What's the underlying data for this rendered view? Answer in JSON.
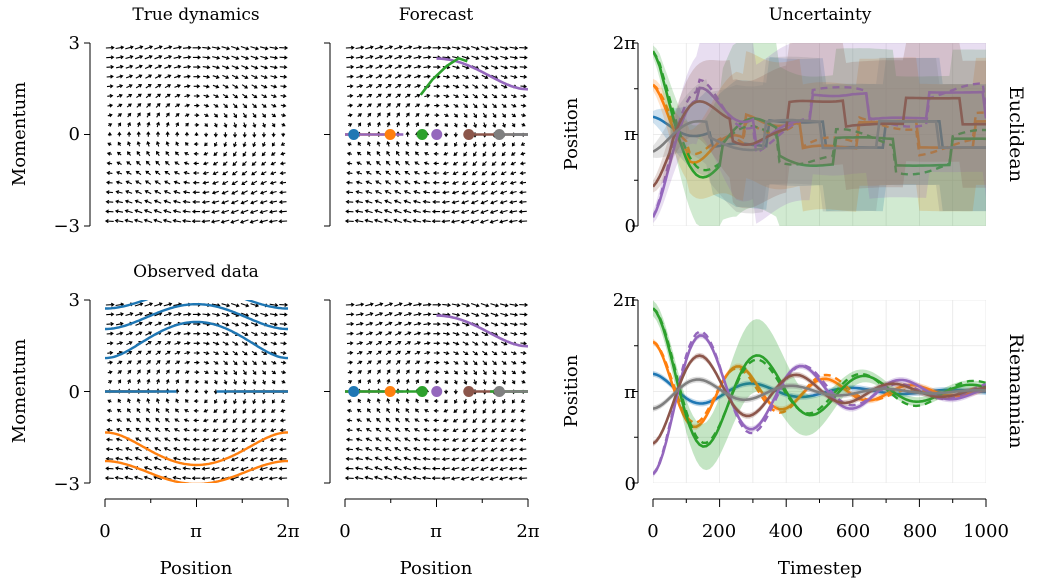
{
  "colors": {
    "blue": "#1f77b4",
    "orange": "#ff7f0e",
    "green": "#2ca02c",
    "purple": "#9467bd",
    "brown": "#8c564b",
    "gray": "#7f7f7f"
  },
  "labels": {
    "title_true": "True dynamics",
    "title_forecast": "Forecast",
    "title_uncertainty": "Uncertainty",
    "title_observed": "Observed data",
    "row_euclidean": "Euclidean",
    "row_riemannian": "Riemannian",
    "ylabel_momentum": "Momentum",
    "ylabel_position": "Position",
    "xlabel_position": "Position",
    "xlabel_timestep": "Timestep"
  },
  "ticks": {
    "momentum": [
      "3",
      "0",
      "−3"
    ],
    "phase_x": [
      "0",
      "π",
      "2π"
    ],
    "position_y": [
      "2π",
      "π",
      "0"
    ],
    "timestep": [
      "0",
      "200",
      "400",
      "600",
      "800",
      "1000"
    ]
  },
  "chart_data": [
    {
      "type": "quiver",
      "panel": "True dynamics",
      "title": "True dynamics",
      "system": "pendulum, dq/dt = p, dp/dt = sin(q)",
      "xlim": [
        0,
        6.2832
      ],
      "ylim": [
        -3,
        3
      ],
      "ylabel": "Momentum",
      "grid": false
    },
    {
      "type": "line",
      "panel": "Forecast (Euclidean)",
      "title": "Forecast",
      "xlim": [
        0,
        6.2832
      ],
      "ylim": [
        -3,
        3
      ],
      "start_points": [
        {
          "color": "blue",
          "q": 0.3,
          "p": 0
        },
        {
          "color": "orange",
          "q": 1.55,
          "p": 0
        },
        {
          "color": "green",
          "q": 2.65,
          "p": 0
        },
        {
          "color": "purple",
          "q": 3.15,
          "p": 0
        },
        {
          "color": "brown",
          "q": 4.25,
          "p": 0
        },
        {
          "color": "gray",
          "q": 5.3,
          "p": 0
        }
      ]
    },
    {
      "type": "line",
      "panel": "Observed data",
      "title": "Observed data",
      "xlim": [
        0,
        6.2832
      ],
      "ylim": [
        -3,
        3
      ],
      "xlabel": "Position",
      "ylabel": "Momentum",
      "series": [
        {
          "name": "blue",
          "description": "orbits around q=0 and q=2pi plus passing trajectories at p=+2.1 and +2.8"
        },
        {
          "name": "orange",
          "description": "orbits around q=0 and q=2pi plus passing trajectories at p=-1.4 and -2.4"
        }
      ]
    },
    {
      "type": "line",
      "panel": "Forecast (Riemannian)",
      "xlim": [
        0,
        6.2832
      ],
      "ylim": [
        -3,
        3
      ],
      "xlabel": "Position",
      "start_points": [
        {
          "color": "blue",
          "q": 0.3,
          "p": 0
        },
        {
          "color": "orange",
          "q": 1.55,
          "p": 0
        },
        {
          "color": "green",
          "q": 2.65,
          "p": 0
        },
        {
          "color": "purple",
          "q": 3.15,
          "p": 0
        },
        {
          "color": "brown",
          "q": 4.25,
          "p": 0
        },
        {
          "color": "gray",
          "q": 5.3,
          "p": 0
        }
      ]
    },
    {
      "type": "line",
      "panel": "Uncertainty (Euclidean)",
      "title": "Uncertainty",
      "row_label": "Euclidean",
      "xlim": [
        0,
        1000
      ],
      "ylim": [
        0,
        6.2832
      ],
      "ylabel": "Position",
      "grid": true,
      "series": [
        {
          "name": "blue",
          "start": 3.75,
          "behaviour": "noisy drift toward pi with wide band"
        },
        {
          "name": "orange",
          "start": 4.85,
          "behaviour": "noisy drift toward pi with wide band"
        },
        {
          "name": "green",
          "start": 6.0,
          "behaviour": "noisy, ends near 2.5"
        },
        {
          "name": "purple",
          "start": 0.3,
          "behaviour": "noisy, ends near 4.2"
        },
        {
          "name": "brown",
          "start": 1.35,
          "behaviour": "noisy, ends near 3.9"
        },
        {
          "name": "gray",
          "start": 2.55,
          "behaviour": "noisy drift toward pi"
        }
      ]
    },
    {
      "type": "line",
      "panel": "Uncertainty (Riemannian)",
      "row_label": "Riemannian",
      "xlim": [
        0,
        1000
      ],
      "ylim": [
        0,
        6.2832
      ],
      "xlabel": "Timestep",
      "ylabel": "Position",
      "grid": true,
      "series": [
        {
          "name": "blue",
          "start": 3.75,
          "behaviour": "damped oscillation toward pi"
        },
        {
          "name": "orange",
          "start": 4.85,
          "behaviour": "damped oscillation toward pi"
        },
        {
          "name": "green",
          "start": 6.0,
          "behaviour": "damped oscillation toward pi"
        },
        {
          "name": "purple",
          "start": 0.3,
          "behaviour": "damped oscillation toward pi"
        },
        {
          "name": "brown",
          "start": 1.35,
          "behaviour": "damped oscillation toward pi"
        },
        {
          "name": "gray",
          "start": 2.55,
          "behaviour": "damped oscillation toward pi"
        }
      ]
    }
  ]
}
